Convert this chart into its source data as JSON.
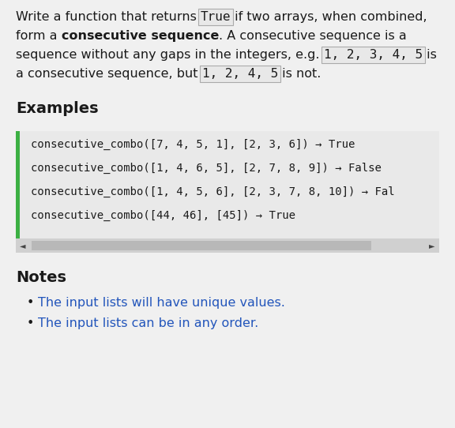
{
  "bg_color": "#f0f0f0",
  "text_color": "#1a1a1a",
  "notes_text_color": "#2255bb",
  "examples_label": "Examples",
  "notes_label": "Notes",
  "code_lines": [
    "consecutive_combo([7, 4, 5, 1], [2, 3, 6]) → True",
    "consecutive_combo([1, 4, 6, 5], [2, 7, 8, 9]) → False",
    "consecutive_combo([1, 4, 5, 6], [2, 3, 7, 8, 10]) → Fal",
    "consecutive_combo([44, 46], [45]) → True"
  ],
  "code_box_color": "#e9e9e9",
  "code_left_bar_color": "#3cb043",
  "scrollbar_bg": "#d0d0d0",
  "scrollbar_handle": "#b8b8b8",
  "notes_items": [
    "The input lists will have unique values.",
    "The input lists can be in any order."
  ],
  "mono_box_bg": "#e8e8e8",
  "mono_box_edge": "#aaaaaa",
  "para_lines": [
    [
      {
        "text": "Write a function that returns ",
        "bold": false,
        "mono": false,
        "boxed": false
      },
      {
        "text": "True",
        "bold": false,
        "mono": true,
        "boxed": true
      },
      {
        "text": " if two arrays, when combined,",
        "bold": false,
        "mono": false,
        "boxed": false
      }
    ],
    [
      {
        "text": "form a ",
        "bold": false,
        "mono": false,
        "boxed": false
      },
      {
        "text": "consecutive sequence",
        "bold": true,
        "mono": false,
        "boxed": false
      },
      {
        "text": ". A consecutive sequence is a",
        "bold": false,
        "mono": false,
        "boxed": false
      }
    ],
    [
      {
        "text": "sequence without any gaps in the integers, e.g. ",
        "bold": false,
        "mono": false,
        "boxed": false
      },
      {
        "text": "1, 2, 3, 4, 5",
        "bold": false,
        "mono": true,
        "boxed": true
      },
      {
        "text": " is",
        "bold": false,
        "mono": false,
        "boxed": false
      }
    ],
    [
      {
        "text": "a consecutive sequence, but ",
        "bold": false,
        "mono": false,
        "boxed": false
      },
      {
        "text": "1, 2, 4, 5",
        "bold": false,
        "mono": true,
        "boxed": true
      },
      {
        "text": " is not.",
        "bold": false,
        "mono": false,
        "boxed": false
      }
    ]
  ],
  "para_fontsize": 11.5,
  "code_fontsize": 10.0,
  "heading_fontsize": 14.0,
  "notes_fontsize": 11.5
}
